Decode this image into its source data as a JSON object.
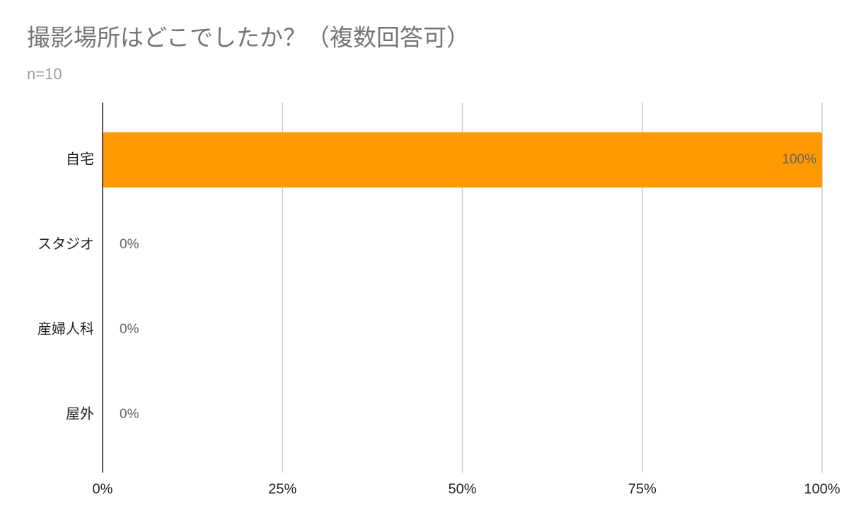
{
  "chart_data": {
    "type": "bar",
    "orientation": "horizontal",
    "title": "撮影場所はどこでしたか？（複数回答可）",
    "subtitle": "n=10",
    "categories": [
      "自宅",
      "スタジオ",
      "産婦人科",
      "屋外"
    ],
    "values": [
      100,
      0,
      0,
      0
    ],
    "value_labels": [
      "100%",
      "0%",
      "0%",
      "0%"
    ],
    "color": "#ff9900",
    "xlim": [
      0,
      100
    ],
    "xticks": [
      {
        "value": 0,
        "label": "0%"
      },
      {
        "value": 25,
        "label": "25%"
      },
      {
        "value": 50,
        "label": "50%"
      },
      {
        "value": 75,
        "label": "75%"
      },
      {
        "value": 100,
        "label": "100%"
      }
    ],
    "grid": true
  }
}
